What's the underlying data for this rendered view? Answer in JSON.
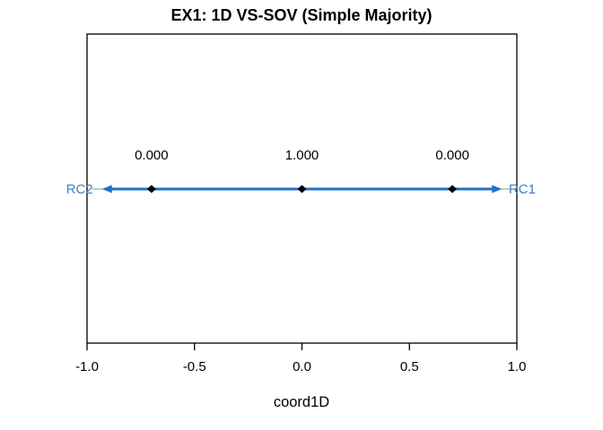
{
  "window": {
    "background": "#ffffff"
  },
  "chart_data": {
    "type": "scatter",
    "title": "EX1: 1D VS-SOV (Simple Majority)",
    "xlabel": "coord1D",
    "xlim": [
      -1.0,
      1.0
    ],
    "grid": false,
    "legend": false,
    "x_ticks": [
      {
        "value": -1.0,
        "label": "-1.0"
      },
      {
        "value": -0.5,
        "label": "-0.5"
      },
      {
        "value": 0.0,
        "label": "0.0"
      },
      {
        "value": 0.5,
        "label": "0.5"
      },
      {
        "value": 1.0,
        "label": "1.0"
      }
    ],
    "points": [
      {
        "x": -0.7,
        "value_label": "0.000"
      },
      {
        "x": 0.0,
        "value_label": "1.000"
      },
      {
        "x": 0.7,
        "value_label": "0.000"
      }
    ],
    "dimension_arrow": {
      "from_x": -0.93,
      "to_x": 0.93,
      "left_label": {
        "text": "RC2",
        "x": -1.035
      },
      "right_label": {
        "text": "RC1",
        "x": 1.025
      }
    },
    "colors": {
      "arrow_blue": "#1f72c8",
      "rc_label_blue": "#3e80c6",
      "point_black": "#000000",
      "axis_black": "#000000",
      "stem_gray": "#a6a6a6",
      "label_black": "#000000",
      "background": "#ffffff"
    }
  }
}
